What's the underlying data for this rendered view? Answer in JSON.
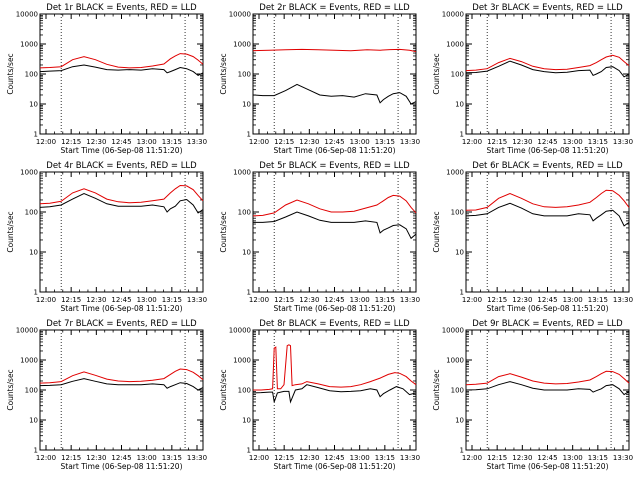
{
  "chart_data": [
    {
      "type": "line",
      "title": "Det 1r BLACK = Events, RED = LLD",
      "xlabel": "Start Time (06-Sep-08 11:51:20)",
      "ylabel": "Counts/sec",
      "y_scale": "log",
      "ylim": [
        1,
        10000
      ],
      "xlim": [
        0,
        100
      ],
      "x_tick_labels": [
        "12:00",
        "12:15",
        "12:30",
        "12:45",
        "13:00",
        "13:15",
        "13:30"
      ],
      "y_tick_labels": [
        "1",
        "10",
        "100",
        "1000",
        "10000"
      ],
      "dotted_vlines": [
        13,
        89
      ],
      "series": [
        {
          "color": "#000000",
          "x": [
            0,
            6,
            13,
            20,
            27,
            34,
            41,
            48,
            55,
            62,
            69,
            76,
            78,
            80,
            83,
            86,
            90,
            94,
            97,
            100
          ],
          "values": [
            120,
            125,
            130,
            175,
            200,
            170,
            140,
            135,
            140,
            135,
            150,
            140,
            110,
            120,
            140,
            165,
            150,
            120,
            90,
            110
          ]
        },
        {
          "color": "#e00000",
          "x": [
            0,
            6,
            13,
            20,
            27,
            34,
            41,
            48,
            55,
            62,
            69,
            76,
            80,
            83,
            86,
            90,
            94,
            97,
            100
          ],
          "values": [
            160,
            165,
            175,
            300,
            380,
            300,
            210,
            170,
            160,
            165,
            185,
            215,
            320,
            400,
            480,
            460,
            380,
            290,
            210
          ]
        }
      ]
    },
    {
      "type": "line",
      "title": "Det 2r BLACK = Events, RED = LLD",
      "xlabel": "Start Time (06-Sep-08 11:51:20)",
      "ylabel": "Counts/sec",
      "y_scale": "log",
      "ylim": [
        1,
        10000
      ],
      "xlim": [
        0,
        100
      ],
      "x_tick_labels": [
        "12:00",
        "12:15",
        "12:30",
        "12:45",
        "13:00",
        "13:15",
        "13:30"
      ],
      "y_tick_labels": [
        "1",
        "10",
        "100",
        "1000",
        "10000"
      ],
      "dotted_vlines": [
        13,
        89
      ],
      "series": [
        {
          "color": "#000000",
          "x": [
            0,
            6,
            13,
            20,
            27,
            34,
            41,
            48,
            55,
            62,
            69,
            76,
            78,
            80,
            83,
            86,
            90,
            94,
            97,
            100
          ],
          "values": [
            20,
            19,
            19,
            28,
            45,
            30,
            20,
            18,
            19,
            17,
            22,
            20,
            11,
            14,
            18,
            22,
            24,
            18,
            10,
            12
          ]
        },
        {
          "color": "#e00000",
          "x": [
            0,
            10,
            20,
            30,
            40,
            50,
            60,
            70,
            78,
            84,
            90,
            96,
            100
          ],
          "values": [
            600,
            620,
            640,
            660,
            640,
            620,
            600,
            640,
            620,
            650,
            660,
            620,
            560
          ]
        }
      ]
    },
    {
      "type": "line",
      "title": "Det 3r BLACK = Events, RED = LLD",
      "xlabel": "Start Time (06-Sep-08 11:51:20)",
      "ylabel": "Counts/sec",
      "y_scale": "log",
      "ylim": [
        1,
        10000
      ],
      "xlim": [
        0,
        100
      ],
      "x_tick_labels": [
        "12:00",
        "12:15",
        "12:30",
        "12:45",
        "13:00",
        "13:15",
        "13:30"
      ],
      "y_tick_labels": [
        "1",
        "10",
        "100",
        "1000",
        "10000"
      ],
      "dotted_vlines": [
        13,
        89
      ],
      "series": [
        {
          "color": "#000000",
          "x": [
            0,
            6,
            13,
            20,
            27,
            34,
            41,
            48,
            55,
            62,
            69,
            76,
            78,
            80,
            83,
            86,
            90,
            94,
            97,
            100
          ],
          "values": [
            110,
            112,
            125,
            180,
            270,
            200,
            140,
            120,
            110,
            115,
            130,
            135,
            90,
            100,
            120,
            165,
            175,
            130,
            80,
            100
          ]
        },
        {
          "color": "#e00000",
          "x": [
            0,
            6,
            13,
            20,
            27,
            34,
            41,
            48,
            55,
            62,
            69,
            76,
            80,
            83,
            86,
            90,
            94,
            97,
            100
          ],
          "values": [
            130,
            135,
            150,
            240,
            330,
            260,
            180,
            150,
            140,
            145,
            165,
            190,
            240,
            300,
            370,
            420,
            360,
            260,
            190
          ]
        }
      ]
    },
    {
      "type": "line",
      "title": "Det 4r BLACK = Events, RED = LLD",
      "xlabel": "Start Time (06-Sep-08 11:51:20)",
      "ylabel": "Counts/sec",
      "y_scale": "log",
      "ylim": [
        1,
        1000
      ],
      "xlim": [
        0,
        100
      ],
      "x_tick_labels": [
        "12:00",
        "12:15",
        "12:30",
        "12:45",
        "13:00",
        "13:15",
        "13:30"
      ],
      "y_tick_labels": [
        "1",
        "10",
        "100",
        "1000"
      ],
      "dotted_vlines": [
        13,
        89
      ],
      "series": [
        {
          "color": "#000000",
          "x": [
            0,
            6,
            13,
            20,
            27,
            34,
            41,
            48,
            55,
            62,
            69,
            76,
            78,
            80,
            83,
            86,
            90,
            94,
            97,
            100
          ],
          "values": [
            130,
            135,
            150,
            210,
            290,
            220,
            160,
            140,
            140,
            140,
            150,
            135,
            100,
            120,
            140,
            190,
            205,
            150,
            95,
            115
          ]
        },
        {
          "color": "#e00000",
          "x": [
            0,
            6,
            13,
            20,
            27,
            34,
            41,
            48,
            55,
            62,
            69,
            76,
            80,
            83,
            86,
            90,
            94,
            97,
            100
          ],
          "values": [
            160,
            165,
            185,
            300,
            380,
            300,
            210,
            180,
            170,
            175,
            190,
            210,
            300,
            380,
            460,
            450,
            360,
            260,
            190
          ]
        }
      ]
    },
    {
      "type": "line",
      "title": "Det 5r BLACK = Events, RED = LLD",
      "xlabel": "Start Time (06-Sep-08 11:51:20)",
      "ylabel": "Counts/sec",
      "y_scale": "log",
      "ylim": [
        1,
        1000
      ],
      "xlim": [
        0,
        100
      ],
      "x_tick_labels": [
        "12:00",
        "12:15",
        "12:30",
        "12:45",
        "13:00",
        "13:15",
        "13:30"
      ],
      "y_tick_labels": [
        "1",
        "10",
        "100",
        "1000"
      ],
      "dotted_vlines": [
        13,
        89
      ],
      "series": [
        {
          "color": "#000000",
          "x": [
            0,
            6,
            13,
            20,
            27,
            34,
            41,
            48,
            55,
            62,
            69,
            76,
            78,
            80,
            83,
            86,
            90,
            94,
            97,
            100
          ],
          "values": [
            55,
            55,
            58,
            75,
            100,
            80,
            62,
            55,
            55,
            55,
            60,
            55,
            30,
            35,
            40,
            46,
            48,
            38,
            22,
            28
          ]
        },
        {
          "color": "#e00000",
          "x": [
            0,
            6,
            13,
            20,
            27,
            34,
            41,
            48,
            55,
            62,
            69,
            76,
            80,
            83,
            86,
            90,
            94,
            97,
            100
          ],
          "values": [
            80,
            82,
            95,
            150,
            200,
            160,
            120,
            100,
            100,
            105,
            125,
            150,
            190,
            230,
            260,
            250,
            190,
            130,
            95
          ]
        }
      ]
    },
    {
      "type": "line",
      "title": "Det 6r BLACK = Events, RED = LLD",
      "xlabel": "Start Time (06-Sep-08 11:51:20)",
      "ylabel": "Counts/sec",
      "y_scale": "log",
      "ylim": [
        1,
        1000
      ],
      "xlim": [
        0,
        100
      ],
      "x_tick_labels": [
        "12:00",
        "12:15",
        "12:30",
        "12:45",
        "13:00",
        "13:15",
        "13:30"
      ],
      "y_tick_labels": [
        "1",
        "10",
        "100",
        "1000"
      ],
      "dotted_vlines": [
        13,
        89
      ],
      "series": [
        {
          "color": "#000000",
          "x": [
            0,
            6,
            13,
            20,
            27,
            34,
            41,
            48,
            55,
            62,
            69,
            76,
            78,
            80,
            83,
            86,
            90,
            94,
            97,
            100
          ],
          "values": [
            80,
            82,
            90,
            130,
            165,
            125,
            90,
            80,
            80,
            80,
            90,
            85,
            60,
            70,
            85,
            105,
            110,
            80,
            45,
            55
          ]
        },
        {
          "color": "#e00000",
          "x": [
            0,
            6,
            13,
            20,
            27,
            34,
            41,
            48,
            55,
            62,
            69,
            76,
            80,
            83,
            86,
            90,
            94,
            97,
            100
          ],
          "values": [
            110,
            112,
            130,
            220,
            290,
            220,
            160,
            135,
            130,
            135,
            150,
            175,
            230,
            290,
            350,
            340,
            260,
            190,
            130
          ]
        }
      ]
    },
    {
      "type": "line",
      "title": "Det 7r BLACK = Events, RED = LLD",
      "xlabel": "Start Time (06-Sep-08 11:51:20)",
      "ylabel": "Counts/sec",
      "y_scale": "log",
      "ylim": [
        1,
        10000
      ],
      "xlim": [
        0,
        100
      ],
      "x_tick_labels": [
        "12:00",
        "12:15",
        "12:30",
        "12:45",
        "13:00",
        "13:15",
        "13:30"
      ],
      "y_tick_labels": [
        "1",
        "10",
        "100",
        "1000",
        "10000"
      ],
      "dotted_vlines": [
        13,
        89
      ],
      "series": [
        {
          "color": "#000000",
          "x": [
            0,
            6,
            13,
            20,
            27,
            34,
            41,
            48,
            55,
            62,
            69,
            76,
            78,
            80,
            83,
            86,
            90,
            94,
            97,
            100
          ],
          "values": [
            140,
            142,
            150,
            195,
            240,
            195,
            160,
            150,
            150,
            150,
            160,
            150,
            115,
            130,
            150,
            175,
            165,
            130,
            100,
            120
          ]
        },
        {
          "color": "#e00000",
          "x": [
            0,
            6,
            13,
            20,
            27,
            34,
            41,
            48,
            55,
            62,
            69,
            76,
            80,
            83,
            86,
            90,
            94,
            97,
            100
          ],
          "values": [
            170,
            175,
            190,
            300,
            400,
            310,
            230,
            200,
            190,
            195,
            210,
            240,
            330,
            420,
            500,
            480,
            390,
            300,
            220
          ]
        }
      ]
    },
    {
      "type": "line",
      "title": "Det 8r BLACK = Events, RED = LLD",
      "xlabel": "Start Time (06-Sep-08 11:51:20)",
      "ylabel": "Counts/sec",
      "y_scale": "log",
      "ylim": [
        1,
        10000
      ],
      "xlim": [
        0,
        100
      ],
      "x_tick_labels": [
        "12:00",
        "12:15",
        "12:30",
        "12:45",
        "13:00",
        "13:15",
        "13:30"
      ],
      "y_tick_labels": [
        "1",
        "10",
        "100",
        "1000",
        "10000"
      ],
      "dotted_vlines": [
        13,
        89
      ],
      "series": [
        {
          "color": "#000000",
          "x": [
            0,
            5,
            10,
            12,
            13,
            15,
            17,
            19,
            22,
            23,
            26,
            30,
            33,
            40,
            47,
            54,
            60,
            66,
            72,
            76,
            78,
            80,
            84,
            88,
            92,
            96,
            100
          ],
          "values": [
            80,
            82,
            85,
            85,
            40,
            80,
            85,
            90,
            90,
            40,
            100,
            110,
            150,
            120,
            95,
            88,
            90,
            95,
            110,
            100,
            60,
            75,
            100,
            130,
            110,
            70,
            80
          ]
        },
        {
          "color": "#e00000",
          "x": [
            0,
            5,
            10,
            12,
            13,
            14,
            15,
            16,
            17,
            19,
            21,
            22,
            23,
            24,
            26,
            30,
            33,
            40,
            47,
            54,
            60,
            66,
            72,
            78,
            83,
            87,
            90,
            94,
            97,
            100
          ],
          "values": [
            100,
            100,
            105,
            110,
            2500,
            2700,
            110,
            110,
            110,
            150,
            3000,
            3200,
            3000,
            140,
            150,
            160,
            190,
            160,
            130,
            125,
            130,
            150,
            190,
            250,
            330,
            380,
            360,
            280,
            200,
            150
          ]
        }
      ]
    },
    {
      "type": "line",
      "title": "Det 9r BLACK = Events, RED = LLD",
      "xlabel": "Start Time (06-Sep-08 11:51:20)",
      "ylabel": "Counts/sec",
      "y_scale": "log",
      "ylim": [
        1,
        10000
      ],
      "xlim": [
        0,
        100
      ],
      "x_tick_labels": [
        "12:00",
        "12:15",
        "12:30",
        "12:45",
        "13:00",
        "13:15",
        "13:30"
      ],
      "y_tick_labels": [
        "1",
        "10",
        "100",
        "1000",
        "10000"
      ],
      "dotted_vlines": [
        13,
        89
      ],
      "series": [
        {
          "color": "#000000",
          "x": [
            0,
            6,
            13,
            20,
            27,
            34,
            41,
            48,
            55,
            62,
            69,
            76,
            78,
            80,
            83,
            86,
            90,
            94,
            97,
            100
          ],
          "values": [
            100,
            102,
            110,
            150,
            190,
            150,
            115,
            100,
            100,
            100,
            110,
            105,
            85,
            95,
            110,
            140,
            150,
            110,
            70,
            90
          ]
        },
        {
          "color": "#e00000",
          "x": [
            0,
            6,
            13,
            20,
            27,
            34,
            41,
            48,
            55,
            62,
            69,
            76,
            80,
            83,
            86,
            90,
            94,
            97,
            100
          ],
          "values": [
            150,
            155,
            170,
            280,
            350,
            270,
            200,
            170,
            160,
            165,
            185,
            215,
            280,
            350,
            420,
            410,
            330,
            240,
            170
          ]
        }
      ]
    }
  ]
}
